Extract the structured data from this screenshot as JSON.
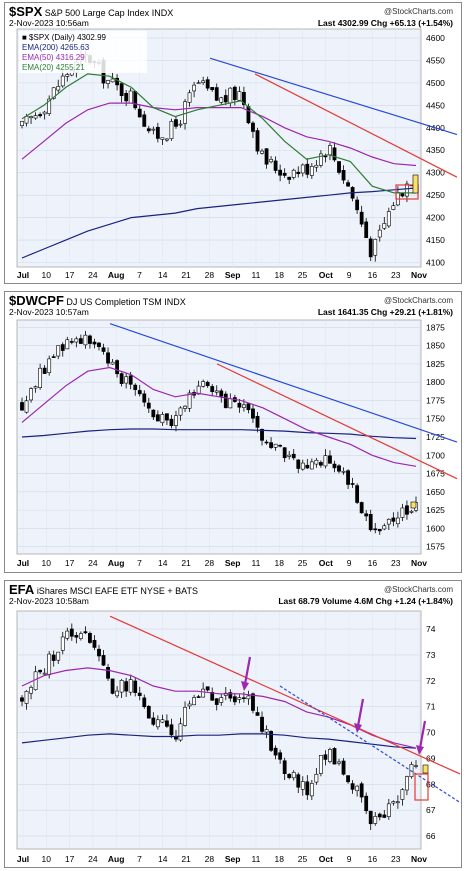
{
  "colors": {
    "ema200": "#1a237e",
    "ema50": "#9c27b0",
    "ema20": "#2e7d32",
    "trend_blue": "#2a4bd7",
    "trend_red": "#e53935",
    "arrow": "#9c27b0",
    "highlight": "#ffe066",
    "box": "#e53935",
    "plot_bg": "#eef3fb"
  },
  "watermark": "@StockCharts.com",
  "panels": [
    {
      "symbol": "$SPX",
      "name": "S&P 500 Large Cap Index",
      "exchange": "INDX",
      "date": "2-Nov-2023 10:56am",
      "last_label": "Last",
      "last": "4302.99",
      "chg_label": "Chg",
      "chg": "+65.13 (+1.54%)",
      "legend": [
        "■ $SPX (Daily) 4302.99",
        "EMA(200) 4265.63",
        "EMA(50) 4316.29",
        "EMA(20) 4255.21"
      ],
      "yticks": [
        "4600",
        "4550",
        "4500",
        "4450",
        "4400",
        "4350",
        "4300",
        "4250",
        "4200",
        "4150",
        "4100"
      ],
      "xticks": [
        "Jul",
        "10",
        "17",
        "24",
        "Aug",
        "7",
        "14",
        "21",
        "28",
        "Sep",
        "11",
        "18",
        "25",
        "Oct",
        "9",
        "16",
        "23",
        "Nov"
      ]
    },
    {
      "symbol": "$DWCPF",
      "name": "DJ US Completion TSM",
      "exchange": "INDX",
      "date": "2-Nov-2023 10:57am",
      "last_label": "Last",
      "last": "1641.35",
      "chg_label": "Chg",
      "chg": "+29.21 (+1.81%)",
      "yticks": [
        "1875",
        "1850",
        "1825",
        "1800",
        "1775",
        "1750",
        "1725",
        "1700",
        "1675",
        "1650",
        "1625",
        "1600",
        "1575"
      ],
      "xticks": [
        "Jul",
        "10",
        "17",
        "24",
        "Aug",
        "7",
        "14",
        "21",
        "28",
        "Sep",
        "11",
        "18",
        "25",
        "Oct",
        "9",
        "16",
        "23",
        "Nov"
      ]
    },
    {
      "symbol": "EFA",
      "name": "iShares MSCI EAFE ETF",
      "exchange": "NYSE + BATS",
      "date": "2-Nov-2023 10:58am",
      "last_label": "Last",
      "last": "68.79",
      "volume_label": "Volume",
      "volume": "4.6M",
      "chg_label": "Chg",
      "chg": "+1.24 (+1.84%)",
      "yticks": [
        "74",
        "73",
        "72",
        "71",
        "70",
        "69",
        "68",
        "67",
        "66"
      ],
      "xticks": [
        "Jul",
        "10",
        "17",
        "24",
        "Aug",
        "7",
        "14",
        "21",
        "28",
        "Sep",
        "11",
        "18",
        "25",
        "Oct",
        "9",
        "16",
        "23",
        "Nov"
      ]
    }
  ],
  "chart_data": [
    {
      "type": "candlestick",
      "title": "$SPX S&P 500 Large Cap Index INDX",
      "ylim": [
        4090,
        4620
      ],
      "x": [
        "2023-07-05",
        "2023-07-10",
        "2023-07-17",
        "2023-07-24",
        "2023-07-31",
        "2023-08-07",
        "2023-08-14",
        "2023-08-21",
        "2023-08-28",
        "2023-09-04",
        "2023-09-11",
        "2023-09-18",
        "2023-09-25",
        "2023-10-02",
        "2023-10-09",
        "2023-10-16",
        "2023-10-23",
        "2023-10-30",
        "2023-11-02"
      ],
      "close": [
        4400,
        4450,
        4520,
        4560,
        4500,
        4470,
        4380,
        4400,
        4500,
        4460,
        4480,
        4330,
        4300,
        4310,
        4360,
        4260,
        4120,
        4240,
        4303
      ],
      "series": [
        {
          "name": "EMA(200)",
          "values": [
            4110,
            4130,
            4150,
            4170,
            4185,
            4200,
            4205,
            4210,
            4220,
            4225,
            4230,
            4235,
            4240,
            4245,
            4250,
            4255,
            4258,
            4262,
            4266
          ]
        },
        {
          "name": "EMA(50)",
          "values": [
            4330,
            4370,
            4410,
            4440,
            4455,
            4455,
            4445,
            4440,
            4445,
            4445,
            4445,
            4425,
            4400,
            4380,
            4370,
            4355,
            4335,
            4320,
            4316
          ]
        },
        {
          "name": "EMA(20)",
          "values": [
            4420,
            4450,
            4490,
            4520,
            4515,
            4490,
            4445,
            4425,
            4440,
            4450,
            4460,
            4420,
            4370,
            4330,
            4340,
            4325,
            4270,
            4255,
            4255
          ]
        }
      ]
    },
    {
      "type": "candlestick",
      "title": "$DWCPF DJ US Completion TSM INDX",
      "ylim": [
        1565,
        1885
      ],
      "x": [
        "2023-07-05",
        "2023-07-10",
        "2023-07-17",
        "2023-07-24",
        "2023-07-31",
        "2023-08-07",
        "2023-08-14",
        "2023-08-21",
        "2023-08-28",
        "2023-09-04",
        "2023-09-11",
        "2023-09-18",
        "2023-09-25",
        "2023-10-02",
        "2023-10-09",
        "2023-10-16",
        "2023-10-23",
        "2023-10-30",
        "2023-11-02"
      ],
      "close": [
        1770,
        1820,
        1855,
        1865,
        1820,
        1800,
        1760,
        1745,
        1800,
        1775,
        1770,
        1720,
        1700,
        1680,
        1700,
        1660,
        1600,
        1610,
        1641
      ],
      "series": [
        {
          "name": "EMA(200)",
          "values": [
            1725,
            1727,
            1730,
            1733,
            1735,
            1736,
            1736,
            1735,
            1735,
            1735,
            1735,
            1734,
            1733,
            1731,
            1730,
            1729,
            1726,
            1724,
            1723
          ]
        },
        {
          "name": "EMA(50)",
          "values": [
            1745,
            1770,
            1795,
            1815,
            1820,
            1810,
            1790,
            1780,
            1785,
            1780,
            1775,
            1765,
            1750,
            1735,
            1725,
            1715,
            1700,
            1690,
            1685
          ]
        }
      ]
    },
    {
      "type": "candlestick",
      "title": "EFA iShares MSCI EAFE ETF NYSE + BATS",
      "ylim": [
        65.5,
        74.7
      ],
      "x": [
        "2023-07-05",
        "2023-07-10",
        "2023-07-17",
        "2023-07-24",
        "2023-07-31",
        "2023-08-07",
        "2023-08-14",
        "2023-08-21",
        "2023-08-28",
        "2023-09-04",
        "2023-09-11",
        "2023-09-18",
        "2023-09-25",
        "2023-10-02",
        "2023-10-09",
        "2023-10-16",
        "2023-10-23",
        "2023-10-30",
        "2023-11-02"
      ],
      "close": [
        71.3,
        72.5,
        73.7,
        74.0,
        71.8,
        71.8,
        70.4,
        69.9,
        71.7,
        71.0,
        71.7,
        70.3,
        68.5,
        67.8,
        69.4,
        68.2,
        66.4,
        67.2,
        68.8
      ],
      "series": [
        {
          "name": "EMA(200)",
          "values": [
            69.6,
            69.7,
            69.8,
            69.9,
            69.95,
            69.9,
            69.85,
            69.85,
            69.9,
            69.9,
            69.95,
            69.95,
            69.9,
            69.8,
            69.75,
            69.65,
            69.55,
            69.45,
            69.4
          ]
        },
        {
          "name": "EMA(50)",
          "values": [
            71.8,
            72.2,
            72.4,
            72.5,
            72.4,
            72.2,
            71.8,
            71.6,
            71.6,
            71.5,
            71.5,
            71.4,
            71.2,
            70.8,
            70.6,
            70.3,
            69.9,
            69.6,
            69.4
          ]
        }
      ]
    }
  ]
}
